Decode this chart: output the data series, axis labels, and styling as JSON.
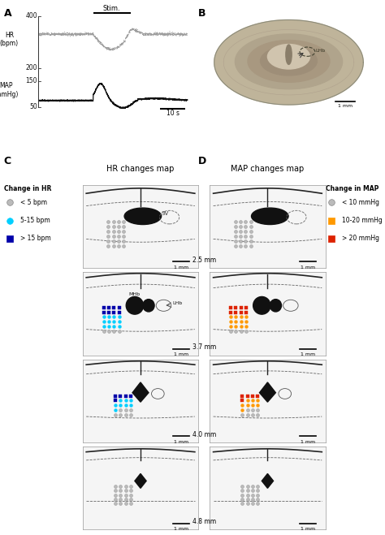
{
  "panel_A_title": "A",
  "panel_B_title": "B",
  "panel_C_title": "C",
  "panel_D_title": "D",
  "hr_ylabel": "HR\n(bpm)",
  "map_ylabel": "MAP\n(mmHg)",
  "stim_label": "Stim.",
  "scale_bar_A": "10 s",
  "C_title": "HR changes map",
  "D_title": "MAP changes map",
  "depths": [
    "2.5 mm",
    "3.7 mm",
    "4.0 mm",
    "4.8 mm"
  ],
  "C_legend_title": "Change in HR",
  "C_legend_labels": [
    "< 5 bpm",
    "5-15 bpm",
    "> 15 bpm"
  ],
  "C_legend_colors": [
    "#bbbbbb",
    "#00cfff",
    "#0000aa"
  ],
  "D_legend_title": "Change in MAP",
  "D_legend_labels": [
    "< 10 mmHg",
    "10-20 mmHg",
    "> 20 mmHg"
  ],
  "D_legend_colors": [
    "#bbbbbb",
    "#ff9900",
    "#dd2200"
  ],
  "background_color": "#ffffff"
}
